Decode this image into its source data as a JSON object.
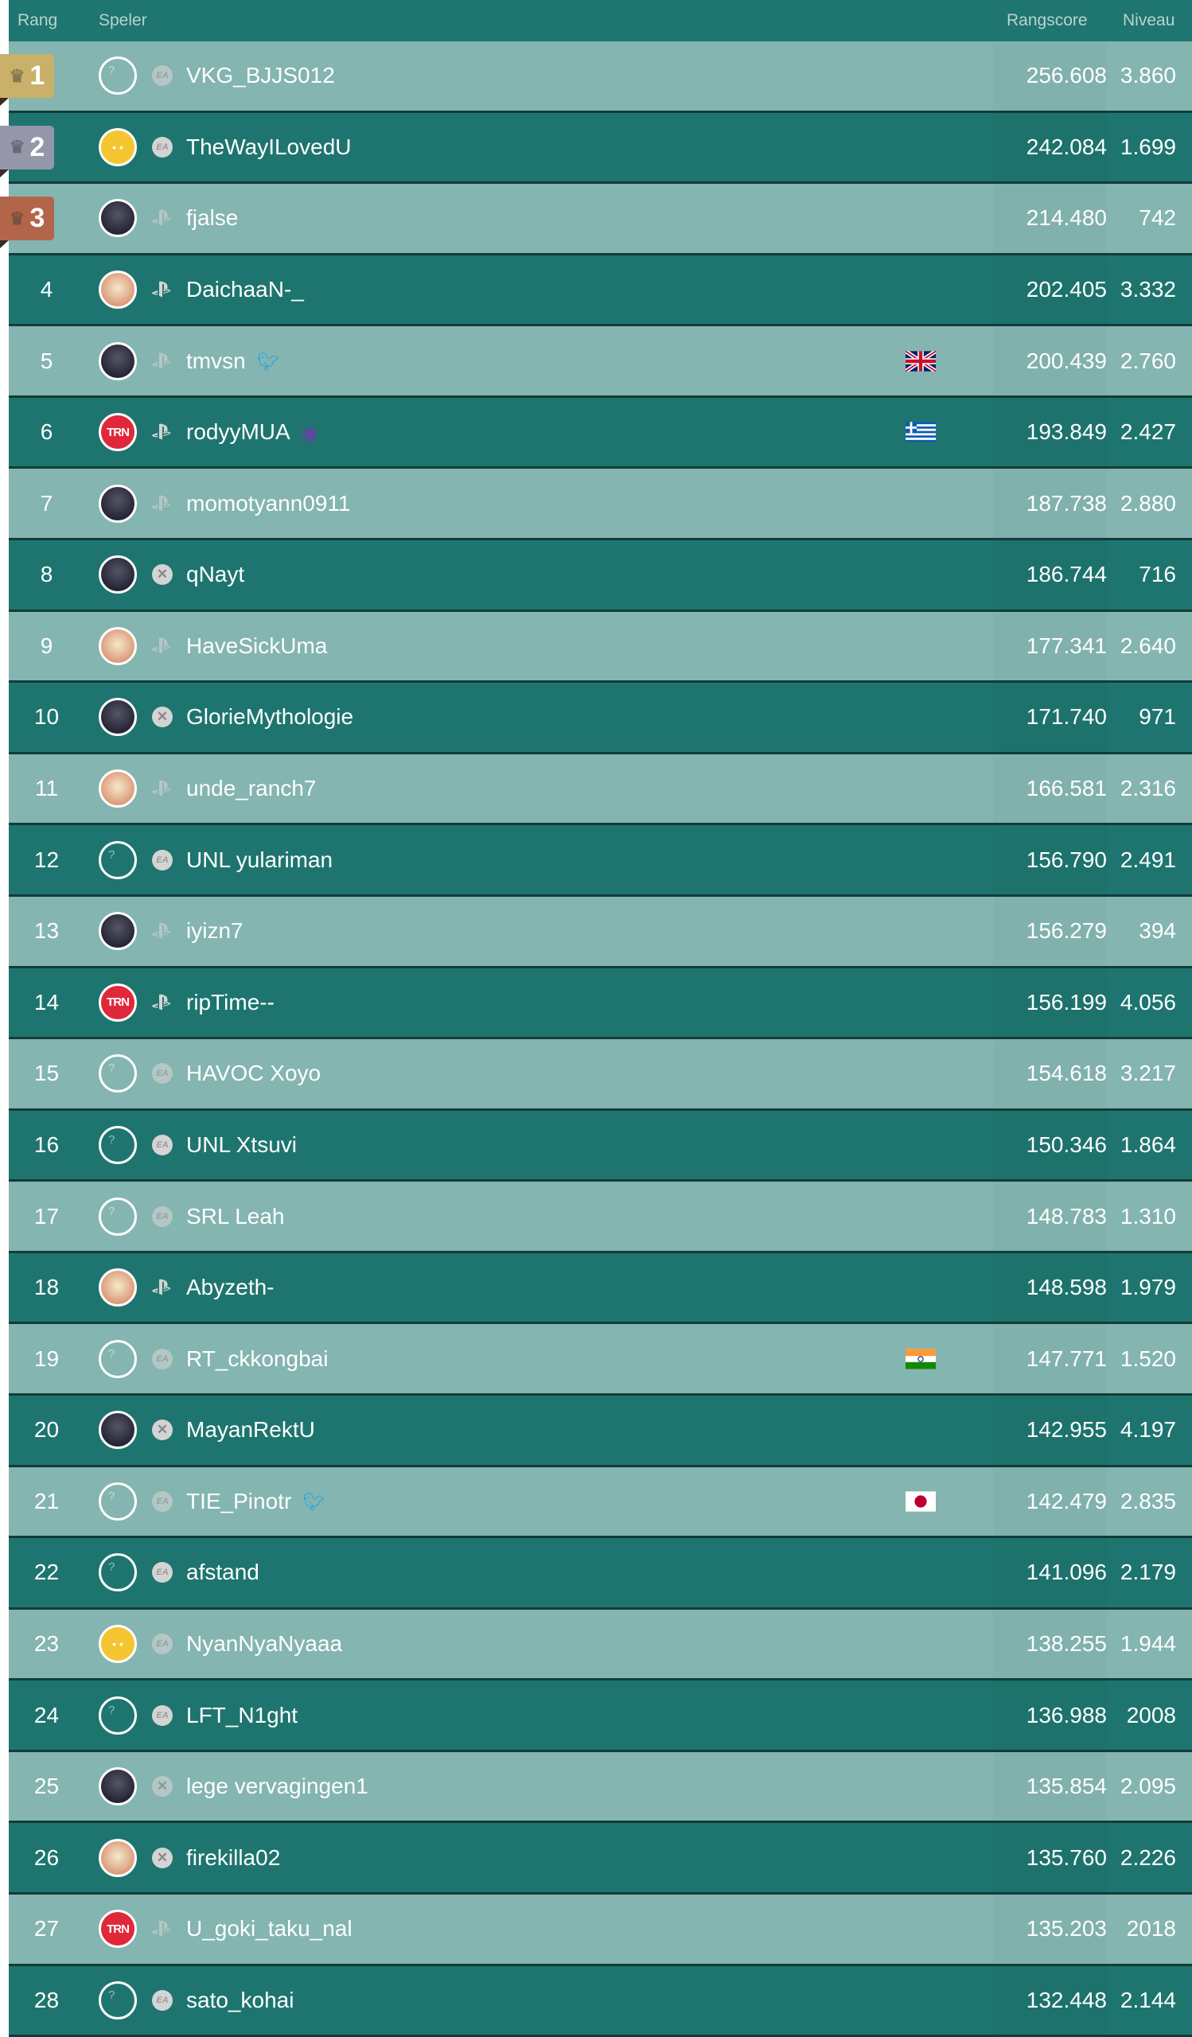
{
  "header": {
    "rank": "Rang",
    "player": "Speler",
    "score": "Rangscore",
    "level": "Niveau"
  },
  "colors": {
    "header": "#1f7570",
    "row_dark": "#1e756f",
    "row_light": "#84b5b0",
    "gold": "#c9b169",
    "silver": "#9497a9",
    "bronze": "#b3654a",
    "twitter": "#1da1f2",
    "twitch": "#6441a5",
    "trn": "#e0283b"
  },
  "rows": [
    {
      "rank": "1",
      "avatar": "unknown",
      "platform": "ea",
      "name": "VKG_BJJS012",
      "score": "256.608",
      "level": "3.860",
      "medal": "gold"
    },
    {
      "rank": "2",
      "avatar": "smiley",
      "platform": "ea",
      "name": "TheWayILovedU",
      "score": "242.084",
      "level": "1.699",
      "medal": "silver"
    },
    {
      "rank": "3",
      "avatar": "photo",
      "platform": "ps",
      "name": "fjalse",
      "score": "214.480",
      "level": "742",
      "medal": "bronze"
    },
    {
      "rank": "4",
      "avatar": "light",
      "platform": "ps",
      "name": "DaichaaN-_",
      "score": "202.405",
      "level": "3.332"
    },
    {
      "rank": "5",
      "avatar": "photo",
      "platform": "ps",
      "name": "tmvsn",
      "social": "twitter",
      "flag": "gb",
      "score": "200.439",
      "level": "2.760"
    },
    {
      "rank": "6",
      "avatar": "trn",
      "platform": "ps",
      "name": "rodyyMUA",
      "social": "twitch",
      "flag": "gr",
      "score": "193.849",
      "level": "2.427"
    },
    {
      "rank": "7",
      "avatar": "photo",
      "platform": "ps",
      "name": "momotyann0911",
      "score": "187.738",
      "level": "2.880"
    },
    {
      "rank": "8",
      "avatar": "photo",
      "platform": "xbox",
      "name": "qNayt",
      "score": "186.744",
      "level": "716"
    },
    {
      "rank": "9",
      "avatar": "light",
      "platform": "ps",
      "name": "HaveSickUma",
      "score": "177.341",
      "level": "2.640"
    },
    {
      "rank": "10",
      "avatar": "photo",
      "platform": "xbox",
      "name": "GlorieMythologie",
      "score": "171.740",
      "level": "971"
    },
    {
      "rank": "11",
      "avatar": "light",
      "platform": "ps",
      "name": "unde_ranch7",
      "score": "166.581",
      "level": "2.316"
    },
    {
      "rank": "12",
      "avatar": "unknown",
      "platform": "ea",
      "name": "UNL yulariman",
      "score": "156.790",
      "level": "2.491"
    },
    {
      "rank": "13",
      "avatar": "photo",
      "platform": "ps",
      "name": "iyizn7",
      "score": "156.279",
      "level": "394"
    },
    {
      "rank": "14",
      "avatar": "trn",
      "platform": "ps",
      "name": "ripTime--",
      "score": "156.199",
      "level": "4.056"
    },
    {
      "rank": "15",
      "avatar": "unknown",
      "platform": "ea",
      "name": "HAVOC Xoyo",
      "score": "154.618",
      "level": "3.217"
    },
    {
      "rank": "16",
      "avatar": "unknown",
      "platform": "ea",
      "name": "UNL Xtsuvi",
      "score": "150.346",
      "level": "1.864"
    },
    {
      "rank": "17",
      "avatar": "unknown",
      "platform": "ea",
      "name": "SRL Leah",
      "score": "148.783",
      "level": "1.310"
    },
    {
      "rank": "18",
      "avatar": "light",
      "platform": "ps",
      "name": "Abyzeth-",
      "score": "148.598",
      "level": "1.979"
    },
    {
      "rank": "19",
      "avatar": "unknown",
      "platform": "ea",
      "name": "RT_ckkongbai",
      "flag": "in",
      "score": "147.771",
      "level": "1.520"
    },
    {
      "rank": "20",
      "avatar": "photo",
      "platform": "xbox",
      "name": "MayanRektU",
      "score": "142.955",
      "level": "4.197"
    },
    {
      "rank": "21",
      "avatar": "unknown",
      "platform": "ea",
      "name": "TIE_Pinotr",
      "social": "twitter",
      "flag": "jp",
      "score": "142.479",
      "level": "2.835"
    },
    {
      "rank": "22",
      "avatar": "unknown",
      "platform": "ea",
      "name": "afstand",
      "score": "141.096",
      "level": "2.179"
    },
    {
      "rank": "23",
      "avatar": "smiley",
      "platform": "ea",
      "name": "NyanNyaNyaaa",
      "score": "138.255",
      "level": "1.944"
    },
    {
      "rank": "24",
      "avatar": "unknown",
      "platform": "ea",
      "name": "LFT_N1ght",
      "score": "136.988",
      "level": "2008"
    },
    {
      "rank": "25",
      "avatar": "photo",
      "platform": "xbox",
      "name": "lege vervagingen1",
      "score": "135.854",
      "level": "2.095"
    },
    {
      "rank": "26",
      "avatar": "light",
      "platform": "xbox",
      "name": "firekilla02",
      "score": "135.760",
      "level": "2.226"
    },
    {
      "rank": "27",
      "avatar": "trn",
      "platform": "ps",
      "name": "U_goki_taku_nal",
      "score": "135.203",
      "level": "2018"
    },
    {
      "rank": "28",
      "avatar": "unknown",
      "platform": "ea",
      "name": "sato_kohai",
      "score": "132.448",
      "level": "2.144"
    }
  ]
}
